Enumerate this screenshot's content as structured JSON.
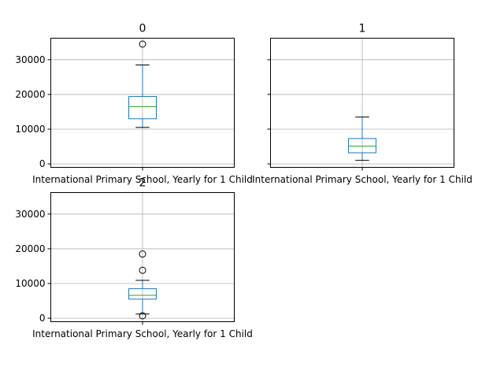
{
  "chart_data": [
    {
      "type": "box",
      "title": "0",
      "categories": [
        "International Primary School, Yearly for 1 Child"
      ],
      "ylim": [
        -1000,
        36200
      ],
      "yticks": [
        0,
        10000,
        20000,
        30000
      ],
      "grid": true,
      "box": {
        "whislo": 10500,
        "q1": 13000,
        "med": 16500,
        "q3": 19400,
        "whishi": 28500
      },
      "fliers": [
        34500
      ]
    },
    {
      "type": "box",
      "title": "1",
      "categories": [
        "International Primary School, Yearly for 1 Child"
      ],
      "ylim": [
        -1000,
        36200
      ],
      "yticks": [
        0,
        10000,
        20000,
        30000
      ],
      "show_yticklabels": false,
      "grid": true,
      "box": {
        "whislo": 1000,
        "q1": 3200,
        "med": 5100,
        "q3": 7300,
        "whishi": 13500
      },
      "fliers": []
    },
    {
      "type": "box",
      "title": "2",
      "categories": [
        "International Primary School, Yearly for 1 Child"
      ],
      "ylim": [
        -1000,
        36200
      ],
      "yticks": [
        0,
        10000,
        20000,
        30000
      ],
      "grid": true,
      "box": {
        "whislo": 1200,
        "q1": 5500,
        "med": 6600,
        "q3": 8500,
        "whishi": 10900
      },
      "fliers": [
        18500,
        13800,
        700
      ]
    }
  ],
  "colors": {
    "box": "#1f77b4",
    "median": "#2ca02c",
    "grid": "#b0b0b0",
    "axes": "#000000"
  }
}
